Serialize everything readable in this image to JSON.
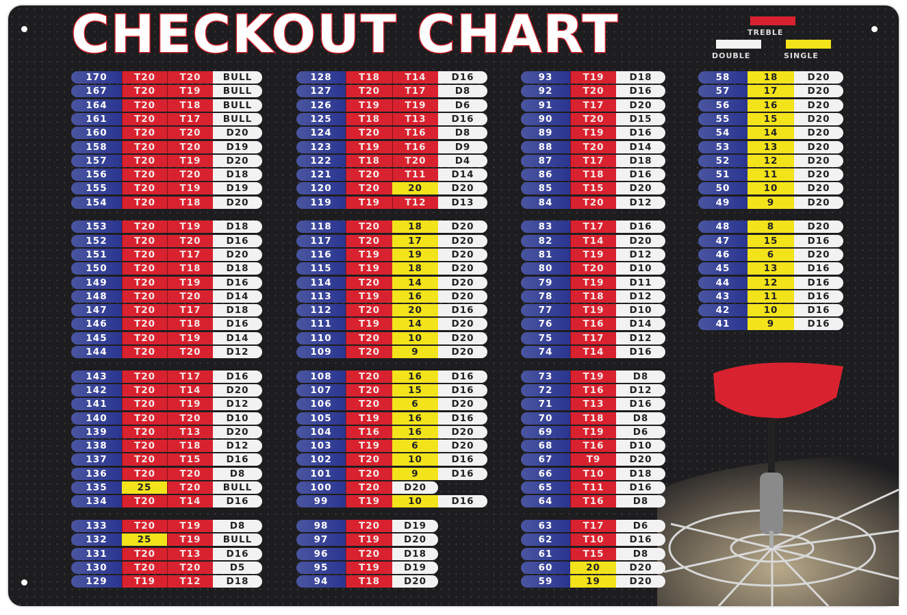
{
  "title": "CHECKOUT CHART",
  "legend": {
    "treble": "TREBLE",
    "double": "DOUBLE",
    "single": "SINGLE"
  },
  "colors": {
    "treble": "#d9222f",
    "double": "#f2f2f2",
    "single": "#f3e31b",
    "score": "#2a3590",
    "background": "#1d1d1f"
  },
  "columns": [
    {
      "groups": [
        [
          [
            "170",
            "T20",
            "T20",
            "BULL"
          ],
          [
            "167",
            "T20",
            "T19",
            "BULL"
          ],
          [
            "164",
            "T20",
            "T18",
            "BULL"
          ],
          [
            "161",
            "T20",
            "T17",
            "BULL"
          ],
          [
            "160",
            "T20",
            "T20",
            "D20"
          ],
          [
            "158",
            "T20",
            "T20",
            "D19"
          ],
          [
            "157",
            "T20",
            "T19",
            "D20"
          ],
          [
            "156",
            "T20",
            "T20",
            "D18"
          ],
          [
            "155",
            "T20",
            "T19",
            "D19"
          ],
          [
            "154",
            "T20",
            "T18",
            "D20"
          ]
        ],
        [
          [
            "153",
            "T20",
            "T19",
            "D18"
          ],
          [
            "152",
            "T20",
            "T20",
            "D16"
          ],
          [
            "151",
            "T20",
            "T17",
            "D20"
          ],
          [
            "150",
            "T20",
            "T18",
            "D18"
          ],
          [
            "149",
            "T20",
            "T19",
            "D16"
          ],
          [
            "148",
            "T20",
            "T20",
            "D14"
          ],
          [
            "147",
            "T20",
            "T17",
            "D18"
          ],
          [
            "146",
            "T20",
            "T18",
            "D16"
          ],
          [
            "145",
            "T20",
            "T19",
            "D14"
          ],
          [
            "144",
            "T20",
            "T20",
            "D12"
          ]
        ],
        [
          [
            "143",
            "T20",
            "T17",
            "D16"
          ],
          [
            "142",
            "T20",
            "T14",
            "D20"
          ],
          [
            "141",
            "T20",
            "T19",
            "D12"
          ],
          [
            "140",
            "T20",
            "T20",
            "D10"
          ],
          [
            "139",
            "T20",
            "T13",
            "D20"
          ],
          [
            "138",
            "T20",
            "T18",
            "D12"
          ],
          [
            "137",
            "T20",
            "T15",
            "D16"
          ],
          [
            "136",
            "T20",
            "T20",
            "D8"
          ],
          [
            "135",
            "25",
            "T20",
            "BULL"
          ],
          [
            "134",
            "T20",
            "T14",
            "D16"
          ]
        ],
        [
          [
            "133",
            "T20",
            "T19",
            "D8"
          ],
          [
            "132",
            "25",
            "T19",
            "BULL"
          ],
          [
            "131",
            "T20",
            "T13",
            "D16"
          ],
          [
            "130",
            "T20",
            "T20",
            "D5"
          ],
          [
            "129",
            "T19",
            "T12",
            "D18"
          ]
        ]
      ]
    },
    {
      "groups": [
        [
          [
            "128",
            "T18",
            "T14",
            "D16"
          ],
          [
            "127",
            "T20",
            "T17",
            "D8"
          ],
          [
            "126",
            "T19",
            "T19",
            "D6"
          ],
          [
            "125",
            "T18",
            "T13",
            "D16"
          ],
          [
            "124",
            "T20",
            "T16",
            "D8"
          ],
          [
            "123",
            "T19",
            "T16",
            "D9"
          ],
          [
            "122",
            "T18",
            "T20",
            "D4"
          ],
          [
            "121",
            "T20",
            "T11",
            "D14"
          ],
          [
            "120",
            "T20",
            "20",
            "D20"
          ],
          [
            "119",
            "T19",
            "T12",
            "D13"
          ]
        ],
        [
          [
            "118",
            "T20",
            "18",
            "D20"
          ],
          [
            "117",
            "T20",
            "17",
            "D20"
          ],
          [
            "116",
            "T19",
            "19",
            "D20"
          ],
          [
            "115",
            "T19",
            "18",
            "D20"
          ],
          [
            "114",
            "T20",
            "14",
            "D20"
          ],
          [
            "113",
            "T19",
            "16",
            "D20"
          ],
          [
            "112",
            "T20",
            "20",
            "D16"
          ],
          [
            "111",
            "T19",
            "14",
            "D20"
          ],
          [
            "110",
            "T20",
            "10",
            "D20"
          ],
          [
            "109",
            "T20",
            "9",
            "D20"
          ]
        ],
        [
          [
            "108",
            "T20",
            "16",
            "D16"
          ],
          [
            "107",
            "T20",
            "15",
            "D16"
          ],
          [
            "106",
            "T20",
            "6",
            "D20"
          ],
          [
            "105",
            "T19",
            "16",
            "D16"
          ],
          [
            "104",
            "T16",
            "16",
            "D20"
          ],
          [
            "103",
            "T19",
            "6",
            "D20"
          ],
          [
            "102",
            "T20",
            "10",
            "D16"
          ],
          [
            "101",
            "T20",
            "9",
            "D16"
          ],
          [
            "100",
            "T20",
            "D20"
          ],
          [
            "99",
            "T19",
            "10",
            "D16"
          ]
        ],
        [
          [
            "98",
            "T20",
            "D19"
          ],
          [
            "97",
            "T19",
            "D20"
          ],
          [
            "96",
            "T20",
            "D18"
          ],
          [
            "95",
            "T19",
            "D19"
          ],
          [
            "94",
            "T18",
            "D20"
          ]
        ]
      ]
    },
    {
      "groups": [
        [
          [
            "93",
            "T19",
            "D18"
          ],
          [
            "92",
            "T20",
            "D16"
          ],
          [
            "91",
            "T17",
            "D20"
          ],
          [
            "90",
            "T20",
            "D15"
          ],
          [
            "89",
            "T19",
            "D16"
          ],
          [
            "88",
            "T20",
            "D14"
          ],
          [
            "87",
            "T17",
            "D18"
          ],
          [
            "86",
            "T18",
            "D16"
          ],
          [
            "85",
            "T15",
            "D20"
          ],
          [
            "84",
            "T20",
            "D12"
          ]
        ],
        [
          [
            "83",
            "T17",
            "D16"
          ],
          [
            "82",
            "T14",
            "D20"
          ],
          [
            "81",
            "T19",
            "D12"
          ],
          [
            "80",
            "T20",
            "D10"
          ],
          [
            "79",
            "T19",
            "D11"
          ],
          [
            "78",
            "T18",
            "D12"
          ],
          [
            "77",
            "T19",
            "D10"
          ],
          [
            "76",
            "T16",
            "D14"
          ],
          [
            "75",
            "T17",
            "D12"
          ],
          [
            "74",
            "T14",
            "D16"
          ]
        ],
        [
          [
            "73",
            "T19",
            "D8"
          ],
          [
            "72",
            "T16",
            "D12"
          ],
          [
            "71",
            "T13",
            "D16"
          ],
          [
            "70",
            "T18",
            "D8"
          ],
          [
            "69",
            "T19",
            "D6"
          ],
          [
            "68",
            "T16",
            "D10"
          ],
          [
            "67",
            "T9",
            "D20"
          ],
          [
            "66",
            "T10",
            "D18"
          ],
          [
            "65",
            "T11",
            "D16"
          ],
          [
            "64",
            "T16",
            "D8"
          ]
        ],
        [
          [
            "63",
            "T17",
            "D6"
          ],
          [
            "62",
            "T10",
            "D16"
          ],
          [
            "61",
            "T15",
            "D8"
          ],
          [
            "60",
            "20",
            "D20"
          ],
          [
            "59",
            "19",
            "D20"
          ]
        ]
      ]
    },
    {
      "groups": [
        [
          [
            "58",
            "18",
            "D20"
          ],
          [
            "57",
            "17",
            "D20"
          ],
          [
            "56",
            "16",
            "D20"
          ],
          [
            "55",
            "15",
            "D20"
          ],
          [
            "54",
            "14",
            "D20"
          ],
          [
            "53",
            "13",
            "D20"
          ],
          [
            "52",
            "12",
            "D20"
          ],
          [
            "51",
            "11",
            "D20"
          ],
          [
            "50",
            "10",
            "D20"
          ],
          [
            "49",
            "9",
            "D20"
          ]
        ],
        [
          [
            "48",
            "8",
            "D20"
          ],
          [
            "47",
            "15",
            "D16"
          ],
          [
            "46",
            "6",
            "D20"
          ],
          [
            "45",
            "13",
            "D16"
          ],
          [
            "44",
            "12",
            "D16"
          ],
          [
            "43",
            "11",
            "D16"
          ],
          [
            "42",
            "10",
            "D16"
          ],
          [
            "41",
            "9",
            "D16"
          ]
        ]
      ]
    }
  ]
}
